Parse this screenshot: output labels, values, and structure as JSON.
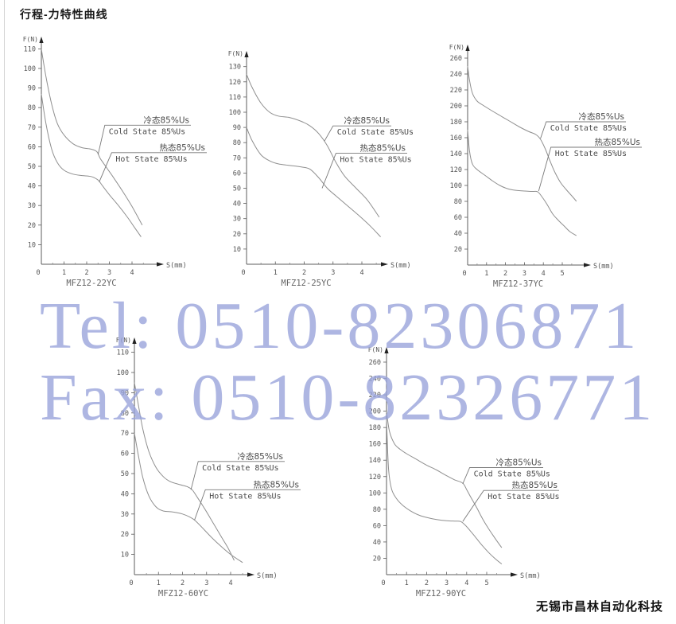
{
  "page": {
    "title": "行程-力特性曲线",
    "company": "无锡市昌林自动化科技",
    "watermark": {
      "tel": "Tel: 0510-82306871",
      "fax": "Fax: 0510-82326771",
      "color": "#9aa5dc"
    }
  },
  "legend": {
    "cold_cn": "冷态85%Us",
    "cold_en": "Cold State 85%Us",
    "hot_cn": "热态85%Us",
    "hot_en": "Hot State 85%Us"
  },
  "chart_data": [
    {
      "type": "line",
      "title": "MFZ12-22YC",
      "xlabel": "S(mm)",
      "ylabel": "F(N)",
      "xlim": [
        0,
        4.8
      ],
      "ylim": [
        0,
        115
      ],
      "xticks": [
        0,
        1,
        2,
        3,
        4
      ],
      "yticks": [
        10,
        20,
        30,
        40,
        50,
        60,
        70,
        80,
        90,
        100,
        110
      ],
      "grid": false,
      "series": [
        {
          "name": "cold_state",
          "points": [
            [
              0,
              110
            ],
            [
              0.2,
              96
            ],
            [
              0.45,
              82
            ],
            [
              0.7,
              72
            ],
            [
              1,
              66
            ],
            [
              1.4,
              61.5
            ],
            [
              1.8,
              59.5
            ],
            [
              2.2,
              58.8
            ],
            [
              2.45,
              57.5
            ],
            [
              2.6,
              54
            ],
            [
              2.9,
              49
            ],
            [
              3.2,
              44
            ],
            [
              3.6,
              37
            ],
            [
              4,
              29.5
            ],
            [
              4.45,
              20
            ]
          ]
        },
        {
          "name": "hot_state",
          "points": [
            [
              0,
              87
            ],
            [
              0.2,
              72
            ],
            [
              0.45,
              59
            ],
            [
              0.7,
              52
            ],
            [
              1,
              48
            ],
            [
              1.4,
              46
            ],
            [
              1.8,
              45.3
            ],
            [
              2.2,
              44.8
            ],
            [
              2.5,
              43
            ],
            [
              2.7,
              40
            ],
            [
              3,
              35.5
            ],
            [
              3.4,
              30
            ],
            [
              3.8,
              24
            ],
            [
              4.1,
              19
            ],
            [
              4.4,
              14
            ]
          ]
        }
      ],
      "callouts": {
        "cold": {
          "attach": [
            2.5,
            56
          ],
          "elbow_x": 2.8,
          "line_y": 71
        },
        "hot": {
          "attach": [
            2.55,
            42
          ],
          "elbow_x": 3.1,
          "line_y": 57
        }
      }
    },
    {
      "type": "line",
      "title": "MFZ12-25YC",
      "xlabel": "S(mm)",
      "ylabel": "F(N)",
      "xlim": [
        0,
        4.7
      ],
      "ylim": [
        0,
        135
      ],
      "xticks": [
        0,
        1,
        2,
        3,
        4
      ],
      "yticks": [
        10,
        20,
        30,
        40,
        50,
        60,
        70,
        80,
        90,
        100,
        110,
        120,
        130
      ],
      "grid": false,
      "series": [
        {
          "name": "cold_state",
          "points": [
            [
              0,
              125
            ],
            [
              0.2,
              116
            ],
            [
              0.5,
              106
            ],
            [
              0.8,
              100
            ],
            [
              1.1,
              97.5
            ],
            [
              1.5,
              96.5
            ],
            [
              1.9,
              94
            ],
            [
              2.2,
              91
            ],
            [
              2.5,
              86
            ],
            [
              2.8,
              78
            ],
            [
              3.1,
              67
            ],
            [
              3.4,
              58
            ],
            [
              3.8,
              50
            ],
            [
              4.2,
              42
            ],
            [
              4.6,
              31
            ]
          ]
        },
        {
          "name": "hot_state",
          "points": [
            [
              0,
              90
            ],
            [
              0.2,
              81
            ],
            [
              0.5,
              72
            ],
            [
              0.8,
              68
            ],
            [
              1.1,
              66
            ],
            [
              1.5,
              65
            ],
            [
              1.9,
              64
            ],
            [
              2.2,
              62.5
            ],
            [
              2.5,
              57
            ],
            [
              2.8,
              50
            ],
            [
              3.1,
              45
            ],
            [
              3.5,
              38.5
            ],
            [
              3.9,
              32
            ],
            [
              4.3,
              25
            ],
            [
              4.65,
              18
            ]
          ]
        }
      ],
      "callouts": {
        "cold": {
          "attach": [
            2.7,
            81
          ],
          "elbow_x": 3.0,
          "line_y": 91
        },
        "hot": {
          "attach": [
            2.62,
            50
          ],
          "elbow_x": 3.1,
          "line_y": 73
        }
      }
    },
    {
      "type": "line",
      "title": "MFZ12-37YC",
      "xlabel": "S(mm)",
      "ylabel": "F(N)",
      "xlim": [
        0,
        5.8
      ],
      "ylim": [
        0,
        270
      ],
      "xticks": [
        0,
        1,
        2,
        3,
        4,
        5
      ],
      "yticks": [
        20,
        40,
        60,
        80,
        100,
        120,
        140,
        160,
        180,
        200,
        220,
        240,
        260
      ],
      "grid": false,
      "series": [
        {
          "name": "cold_state",
          "points": [
            [
              0,
              250
            ],
            [
              0.1,
              232
            ],
            [
              0.25,
              216
            ],
            [
              0.5,
              206
            ],
            [
              0.8,
              201
            ],
            [
              1.2,
              195
            ],
            [
              1.7,
              188
            ],
            [
              2.2,
              181
            ],
            [
              2.7,
              174
            ],
            [
              3.2,
              168
            ],
            [
              3.6,
              164
            ],
            [
              3.85,
              158
            ],
            [
              4.1,
              146
            ],
            [
              4.35,
              131
            ],
            [
              4.6,
              117
            ],
            [
              4.9,
              104
            ],
            [
              5.2,
              95
            ],
            [
              5.5,
              87
            ],
            [
              5.75,
              80
            ]
          ]
        },
        {
          "name": "hot_state",
          "points": [
            [
              0,
              170
            ],
            [
              0.1,
              143
            ],
            [
              0.25,
              127
            ],
            [
              0.5,
              120
            ],
            [
              0.9,
              113
            ],
            [
              1.3,
              106
            ],
            [
              1.7,
              100
            ],
            [
              2.1,
              96
            ],
            [
              2.5,
              94
            ],
            [
              3,
              93
            ],
            [
              3.4,
              92.5
            ],
            [
              3.7,
              92
            ],
            [
              3.95,
              85
            ],
            [
              4.2,
              76
            ],
            [
              4.5,
              64
            ],
            [
              4.8,
              56
            ],
            [
              5.1,
              49
            ],
            [
              5.4,
              42
            ],
            [
              5.75,
              37
            ]
          ]
        }
      ],
      "callouts": {
        "cold": {
          "attach": [
            3.85,
            159
          ],
          "elbow_x": 4.15,
          "line_y": 180
        },
        "hot": {
          "attach": [
            3.75,
            93
          ],
          "elbow_x": 4.4,
          "line_y": 148
        }
      }
    },
    {
      "type": "line",
      "title": "MFZ12-60YC",
      "xlabel": "S(mm)",
      "ylabel": "F(N)",
      "xlim": [
        0,
        4.7
      ],
      "ylim": [
        0,
        115
      ],
      "xticks": [
        0,
        1,
        2,
        3,
        4
      ],
      "yticks": [
        10,
        20,
        30,
        40,
        50,
        60,
        70,
        80,
        90,
        100,
        110
      ],
      "grid": false,
      "series": [
        {
          "name": "cold_state",
          "points": [
            [
              0,
              95
            ],
            [
              0.15,
              85
            ],
            [
              0.35,
              72
            ],
            [
              0.6,
              61
            ],
            [
              0.9,
              53
            ],
            [
              1.2,
              48.5
            ],
            [
              1.5,
              46
            ],
            [
              1.9,
              44.5
            ],
            [
              2.2,
              43.5
            ],
            [
              2.4,
              42
            ],
            [
              2.6,
              38.5
            ],
            [
              2.9,
              33
            ],
            [
              3.2,
              27
            ],
            [
              3.6,
              19
            ],
            [
              3.9,
              13
            ],
            [
              4.15,
              7
            ]
          ]
        },
        {
          "name": "hot_state",
          "points": [
            [
              0,
              70
            ],
            [
              0.15,
              60
            ],
            [
              0.35,
              48
            ],
            [
              0.6,
              39
            ],
            [
              0.9,
              33.5
            ],
            [
              1.2,
              31.5
            ],
            [
              1.6,
              31
            ],
            [
              2,
              30
            ],
            [
              2.3,
              28.5
            ],
            [
              2.5,
              27
            ],
            [
              2.8,
              23.5
            ],
            [
              3.2,
              18.5
            ],
            [
              3.6,
              14
            ],
            [
              4,
              10
            ],
            [
              4.5,
              6
            ]
          ]
        }
      ],
      "callouts": {
        "cold": {
          "attach": [
            2.35,
            42
          ],
          "elbow_x": 2.65,
          "line_y": 56
        },
        "hot": {
          "attach": [
            2.5,
            27
          ],
          "elbow_x": 2.95,
          "line_y": 42
        }
      }
    },
    {
      "type": "line",
      "title": "MFZ12-90YC",
      "xlabel": "S(mm)",
      "ylabel": "F(N)",
      "xlim": [
        0,
        5.9
      ],
      "ylim": [
        0,
        270
      ],
      "xticks": [
        0,
        1,
        2,
        3,
        4,
        5
      ],
      "yticks": [
        20,
        40,
        60,
        80,
        100,
        120,
        140,
        160,
        180,
        200,
        220,
        240,
        260
      ],
      "grid": false,
      "series": [
        {
          "name": "cold_state",
          "points": [
            [
              0,
              200
            ],
            [
              0.15,
              175
            ],
            [
              0.4,
              160
            ],
            [
              0.7,
              153
            ],
            [
              1,
              148
            ],
            [
              1.5,
              141
            ],
            [
              2,
              134
            ],
            [
              2.5,
              128
            ],
            [
              3,
              121
            ],
            [
              3.4,
              116
            ],
            [
              3.8,
              112
            ],
            [
              4,
              104
            ],
            [
              4.2,
              95
            ],
            [
              4.5,
              82
            ],
            [
              4.8,
              68
            ],
            [
              5.1,
              56
            ],
            [
              5.4,
              45
            ],
            [
              5.75,
              33
            ]
          ]
        },
        {
          "name": "hot_state",
          "points": [
            [
              0,
              190
            ],
            [
              0.1,
              130
            ],
            [
              0.25,
              105
            ],
            [
              0.5,
              93
            ],
            [
              0.8,
              85
            ],
            [
              1.2,
              78
            ],
            [
              1.6,
              73
            ],
            [
              2,
              70
            ],
            [
              2.5,
              67.5
            ],
            [
              3,
              66
            ],
            [
              3.4,
              65.5
            ],
            [
              3.7,
              65
            ],
            [
              3.95,
              60
            ],
            [
              4.2,
              53
            ],
            [
              4.5,
              44
            ],
            [
              4.8,
              35
            ],
            [
              5.1,
              27
            ],
            [
              5.4,
              20
            ],
            [
              5.75,
              13
            ]
          ]
        }
      ],
      "callouts": {
        "cold": {
          "attach": [
            3.8,
            111
          ],
          "elbow_x": 4.15,
          "line_y": 131
        },
        "hot": {
          "attach": [
            3.8,
            65
          ],
          "elbow_x": 4.85,
          "line_y": 103
        }
      }
    }
  ]
}
